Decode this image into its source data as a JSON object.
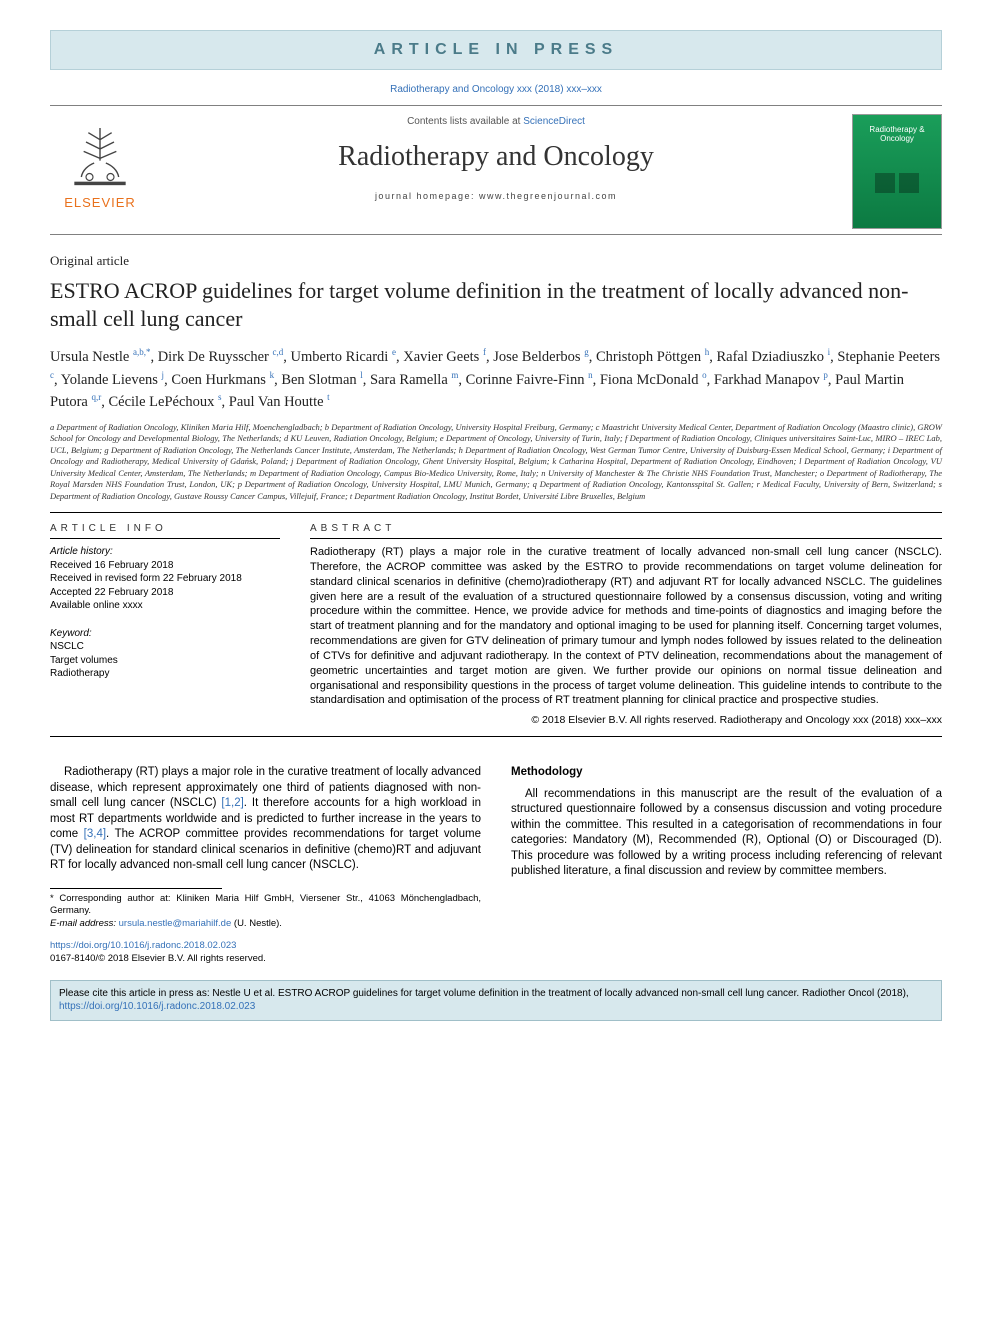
{
  "banner": {
    "text": "ARTICLE IN PRESS"
  },
  "citation_top": "Radiotherapy and Oncology xxx (2018) xxx–xxx",
  "header": {
    "contents_prefix": "Contents lists available at ",
    "contents_link": "ScienceDirect",
    "journal_title": "Radiotherapy and Oncology",
    "homepage_label": "journal homepage: www.thegreenjournal.com",
    "elsevier_label": "ELSEVIER",
    "cover_title": "Radiotherapy & Oncology"
  },
  "article": {
    "type": "Original article",
    "title": "ESTRO ACROP guidelines for target volume definition in the treatment of locally advanced non-small cell lung cancer"
  },
  "authors": [
    {
      "name": "Ursula Nestle",
      "sup": "a,b,*"
    },
    {
      "name": "Dirk De Ruysscher",
      "sup": "c,d"
    },
    {
      "name": "Umberto Ricardi",
      "sup": "e"
    },
    {
      "name": "Xavier Geets",
      "sup": "f"
    },
    {
      "name": "Jose Belderbos",
      "sup": "g"
    },
    {
      "name": "Christoph Pöttgen",
      "sup": "h"
    },
    {
      "name": "Rafal Dziadiuszko",
      "sup": "i"
    },
    {
      "name": "Stephanie Peeters",
      "sup": "c"
    },
    {
      "name": "Yolande Lievens",
      "sup": "j"
    },
    {
      "name": "Coen Hurkmans",
      "sup": "k"
    },
    {
      "name": "Ben Slotman",
      "sup": "l"
    },
    {
      "name": "Sara Ramella",
      "sup": "m"
    },
    {
      "name": "Corinne Faivre-Finn",
      "sup": "n"
    },
    {
      "name": "Fiona McDonald",
      "sup": "o"
    },
    {
      "name": "Farkhad Manapov",
      "sup": "p"
    },
    {
      "name": "Paul Martin Putora",
      "sup": "q,r"
    },
    {
      "name": "Cécile LePéchoux",
      "sup": "s"
    },
    {
      "name": "Paul Van Houtte",
      "sup": "t"
    }
  ],
  "affiliations_text": "a Department of Radiation Oncology, Kliniken Maria Hilf, Moenchengladbach; b Department of Radiation Oncology, University Hospital Freiburg, Germany; c Maastricht University Medical Center, Department of Radiation Oncology (Maastro clinic), GROW School for Oncology and Developmental Biology, The Netherlands; d KU Leuven, Radiation Oncology, Belgium; e Department of Oncology, University of Turin, Italy; f Department of Radiation Oncology, Cliniques universitaires Saint-Luc, MIRO – IREC Lab, UCL, Belgium; g Department of Radiation Oncology, The Netherlands Cancer Institute, Amsterdam, The Netherlands; h Department of Radiation Oncology, West German Tumor Centre, University of Duisburg-Essen Medical School, Germany; i Department of Oncology and Radiotherapy, Medical University of Gdańsk, Poland; j Department of Radiation Oncology, Ghent University Hospital, Belgium; k Catharina Hospital, Department of Radiation Oncology, Eindhoven; l Department of Radiation Oncology, VU University Medical Center, Amsterdam, The Netherlands; m Department of Radiation Oncology, Campus Bio-Medico University, Rome, Italy; n University of Manchester & The Christie NHS Foundation Trust, Manchester; o Department of Radiotherapy, The Royal Marsden NHS Foundation Trust, London, UK; p Department of Radiation Oncology, University Hospital, LMU Munich, Germany; q Department of Radiation Oncology, Kantonsspital St. Gallen; r Medical Faculty, University of Bern, Switzerland; s Department of Radiation Oncology, Gustave Roussy Cancer Campus, Villejuif, France; t Department Radiation Oncology, Institut Bordet, Université Libre Bruxelles, Belgium",
  "info": {
    "heading": "ARTICLE INFO",
    "history_label": "Article history:",
    "history_lines": [
      "Received 16 February 2018",
      "Received in revised form 22 February 2018",
      "Accepted 22 February 2018",
      "Available online xxxx"
    ],
    "keyword_label": "Keyword:",
    "keywords": [
      "NSCLC",
      "Target volumes",
      "Radiotherapy"
    ]
  },
  "abstract": {
    "heading": "ABSTRACT",
    "text": "Radiotherapy (RT) plays a major role in the curative treatment of locally advanced non-small cell lung cancer (NSCLC). Therefore, the ACROP committee was asked by the ESTRO to provide recommendations on target volume delineation for standard clinical scenarios in definitive (chemo)radiotherapy (RT) and adjuvant RT for locally advanced NSCLC. The guidelines given here are a result of the evaluation of a structured questionnaire followed by a consensus discussion, voting and writing procedure within the committee. Hence, we provide advice for methods and time-points of diagnostics and imaging before the start of treatment planning and for the mandatory and optional imaging to be used for planning itself. Concerning target volumes, recommendations are given for GTV delineation of primary tumour and lymph nodes followed by issues related to the delineation of CTVs for definitive and adjuvant radiotherapy. In the context of PTV delineation, recommendations about the management of geometric uncertainties and target motion are given. We further provide our opinions on normal tissue delineation and organisational and responsibility questions in the process of target volume delineation. This guideline intends to contribute to the standardisation and optimisation of the process of RT treatment planning for clinical practice and prospective studies.",
    "copyright": "© 2018 Elsevier B.V. All rights reserved. Radiotherapy and Oncology xxx (2018) xxx–xxx"
  },
  "body": {
    "left": {
      "para1_pre": "Radiotherapy (RT) plays a major role in the curative treatment of locally advanced disease, which represent approximately one third of patients diagnosed with non-small cell lung cancer (NSCLC) ",
      "ref1": "[1,2]",
      "para1_mid": ". It therefore accounts for a high workload in most RT departments worldwide and is predicted to further increase in the years to come ",
      "ref2": "[3,4]",
      "para1_post": ". The ACROP committee provides recommendations for target volume (TV) delineation for standard clinical scenarios in definitive (chemo)RT and adjuvant RT for locally advanced non-small cell lung cancer (NSCLC)."
    },
    "right": {
      "heading": "Methodology",
      "para1": "All recommendations in this manuscript are the result of the evaluation of a structured questionnaire followed by a consensus discussion and voting procedure within the committee. This resulted in a categorisation of recommendations in four categories: Mandatory (M), Recommended (R), Optional (O) or Discouraged (D). This procedure was followed by a writing process including referencing of relevant published literature, a final discussion and review by committee members."
    }
  },
  "footnotes": {
    "corresponding": "* Corresponding author at: Kliniken Maria Hilf GmbH, Viersener Str., 41063 Mönchengladbach, Germany.",
    "email_label": "E-mail address: ",
    "email": "ursula.nestle@mariahilf.de",
    "email_paren": " (U. Nestle)."
  },
  "doi": {
    "url": "https://doi.org/10.1016/j.radonc.2018.02.023",
    "issn_line": "0167-8140/© 2018 Elsevier B.V. All rights reserved."
  },
  "cite_box": {
    "pre": "Please cite this article in press as: Nestle U et al. ESTRO ACROP guidelines for target volume definition in the treatment of locally advanced non-small cell lung cancer. Radiother Oncol (2018), ",
    "link": "https://doi.org/10.1016/j.radonc.2018.02.023"
  },
  "colors": {
    "link": "#3571b8",
    "banner_bg": "#d7e8ed",
    "banner_text": "#4b7b89",
    "elsevier_orange": "#e9711c",
    "cover_bg": "#1a9e5a"
  }
}
